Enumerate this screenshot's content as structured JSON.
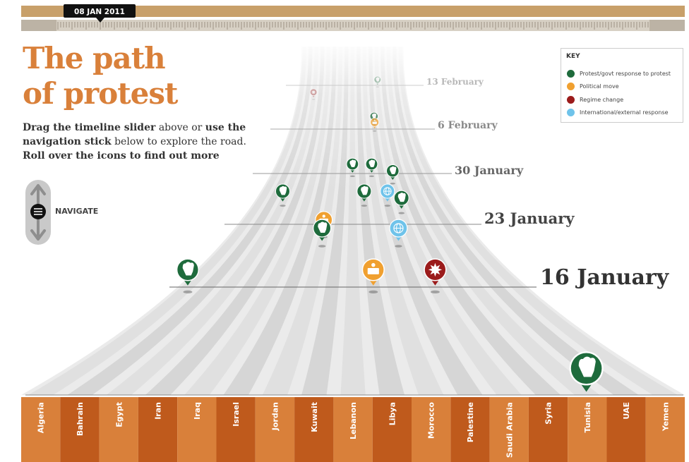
{
  "timeline": {
    "current_date": "08 JAN 2011"
  },
  "headline": {
    "line1": "The path",
    "line2": "of protest"
  },
  "intro": {
    "part1": "Drag the timeline slider",
    "part2": " above or ",
    "part3": "use the navigation stick",
    "part4": " below to explore the road. ",
    "part5": "Roll over the icons to find out more"
  },
  "navigation": {
    "label": "NAVIGATE"
  },
  "key": {
    "title": "KEY",
    "items": [
      {
        "label": "Protest/govt response to protest",
        "color": "#1e6b3c"
      },
      {
        "label": "Political move",
        "color": "#f0a030"
      },
      {
        "label": "Regime change",
        "color": "#9b1b1b"
      },
      {
        "label": "International/external response",
        "color": "#6fc3ea"
      }
    ]
  },
  "date_markers": [
    "16 January",
    "23 January",
    "30 January",
    "6 February",
    "13 February"
  ],
  "countries": [
    "Algeria",
    "Bahrain",
    "Egypt",
    "Iran",
    "Iraq",
    "Israel",
    "Jordan",
    "Kuwait",
    "Lebanon",
    "Libya",
    "Morocco",
    "Palestine",
    "Saudi Arabia",
    "Syria",
    "Tunisia",
    "UAE",
    "Yemen"
  ],
  "colors": {
    "accent": "#d9803a",
    "timeline_bar": "#c8a06a",
    "country_orange": "#d9803a",
    "country_dark": "#bf5a1c",
    "protest": "#1e6b3c",
    "political": "#f0a030",
    "regime": "#9b1b1b",
    "international": "#6fc3ea"
  },
  "events": [
    {
      "lane": "Algeria",
      "date": "16 January",
      "type": "protest",
      "icon": "fist-icon"
    },
    {
      "lane": "Libya",
      "date": "16 January",
      "type": "political",
      "icon": "podium-icon"
    },
    {
      "lane": "Saudi Arabia",
      "date": "16 January",
      "type": "regime",
      "icon": "starburst-icon"
    },
    {
      "lane": "Tunisia",
      "date": "14 January",
      "type": "protest",
      "icon": "fist-icon"
    },
    {
      "lane": "Jordan",
      "date": "21 January",
      "type": "protest",
      "icon": "fist-icon"
    },
    {
      "lane": "Jordan",
      "date": "22 January",
      "type": "political",
      "icon": "podium-icon"
    },
    {
      "lane": "Palestine",
      "date": "21 January",
      "type": "international",
      "icon": "globe-icon"
    },
    {
      "lane": "Saudi Arabia",
      "date": "25 January",
      "type": "protest",
      "icon": "fist-icon"
    },
    {
      "lane": "Palestine",
      "date": "26 January",
      "type": "international",
      "icon": "globe-icon"
    },
    {
      "lane": "Libya",
      "date": "26 January",
      "type": "protest",
      "icon": "fist-icon"
    },
    {
      "lane": "Egypt",
      "date": "26 January",
      "type": "protest",
      "icon": "fist-icon"
    },
    {
      "lane": "Saudi Arabia",
      "date": "29 January",
      "type": "protest",
      "icon": "fist-icon"
    },
    {
      "lane": "Lebanon",
      "date": "30 January",
      "type": "protest",
      "icon": "fist-icon"
    },
    {
      "lane": "Morocco",
      "date": "30 January",
      "type": "protest",
      "icon": "fist-icon"
    },
    {
      "lane": "Palestine",
      "date": "6 February",
      "type": "political",
      "icon": "podium-icon"
    },
    {
      "lane": "Palestine",
      "date": "7 February",
      "type": "protest",
      "icon": "fist-icon"
    },
    {
      "lane": "Egypt",
      "date": "11 February",
      "type": "regime",
      "icon": "starburst-icon"
    },
    {
      "lane": "Saudi Arabia",
      "date": "13 February",
      "type": "protest",
      "icon": "fist-icon"
    }
  ]
}
